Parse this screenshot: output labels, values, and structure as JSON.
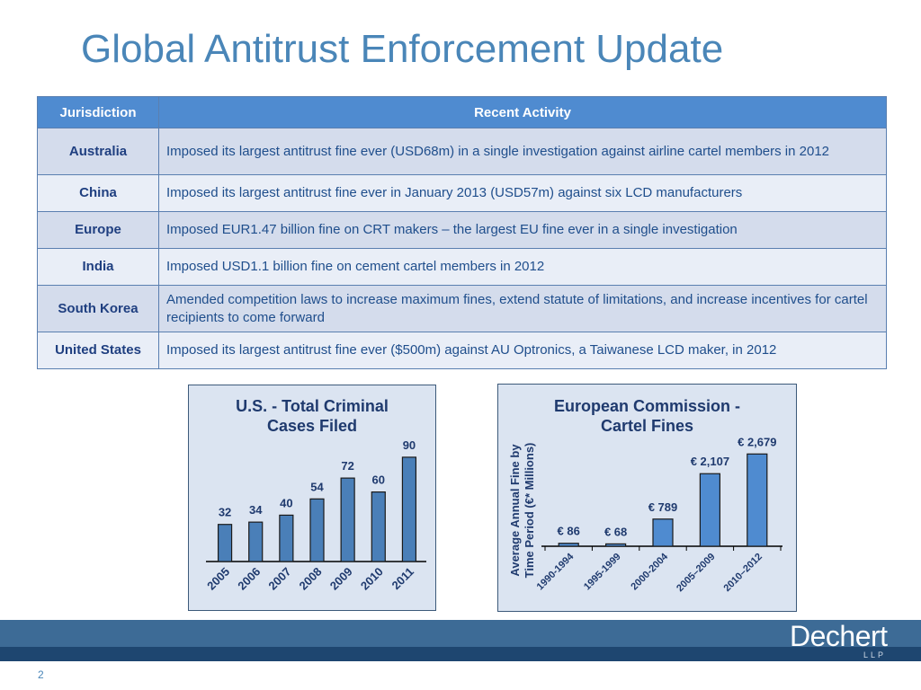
{
  "title": "Global Antitrust Enforcement Update",
  "table": {
    "headers": [
      "Jurisdiction",
      "Recent Activity"
    ],
    "rows": [
      {
        "jurisdiction": "Australia",
        "activity": "Imposed its largest antitrust fine ever (USD68m) in a single investigation against airline cartel members in 2012"
      },
      {
        "jurisdiction": "China",
        "activity": "Imposed its largest antitrust fine ever in January 2013 (USD57m) against six LCD manufacturers"
      },
      {
        "jurisdiction": "Europe",
        "activity": "Imposed EUR1.47 billion fine on CRT makers – the largest EU fine ever in a single investigation"
      },
      {
        "jurisdiction": "India",
        "activity": "Imposed USD1.1 billion fine on cement cartel members in 2012"
      },
      {
        "jurisdiction": "South Korea",
        "activity": "Amended competition laws to increase maximum fines, extend statute of limitations, and increase incentives for cartel recipients to come forward"
      },
      {
        "jurisdiction": "United States",
        "activity": "Imposed its largest antitrust fine ever ($500m) against AU Optronics, a Taiwanese LCD maker, in 2012"
      }
    ]
  },
  "chart_data": [
    {
      "type": "bar",
      "title_lines": [
        "U.S. - Total Criminal",
        "Cases Filed"
      ],
      "categories": [
        "2005",
        "2006",
        "2007",
        "2008",
        "2009",
        "2010",
        "2011"
      ],
      "values": [
        32,
        34,
        40,
        54,
        72,
        60,
        90
      ],
      "data_labels": [
        "32",
        "34",
        "40",
        "54",
        "72",
        "60",
        "90"
      ],
      "ylim": [
        0,
        100
      ],
      "xlabel": "",
      "ylabel": "",
      "grid": false,
      "bar_color": "#4a7fb8"
    },
    {
      "type": "bar",
      "title_lines": [
        "European Commission -",
        "Cartel Fines"
      ],
      "categories": [
        "1990-1994",
        "1995-1999",
        "2000-2004",
        "2005–2009",
        "2010–2012"
      ],
      "values": [
        86,
        68,
        789,
        2107,
        2679
      ],
      "data_labels": [
        "€ 86",
        "€ 68",
        "€ 789",
        "€ 2,107",
        "€ 2,679"
      ],
      "ylabel_lines": [
        "Average Annual Fine by",
        "Time Period (€* Millions)"
      ],
      "ylim": [
        0,
        3000
      ],
      "xlabel": "",
      "grid": false,
      "bar_color": "#4f8bd0"
    }
  ],
  "footer": {
    "logo": "Dechert",
    "logo_sub": "LLP",
    "page_number": "2"
  }
}
